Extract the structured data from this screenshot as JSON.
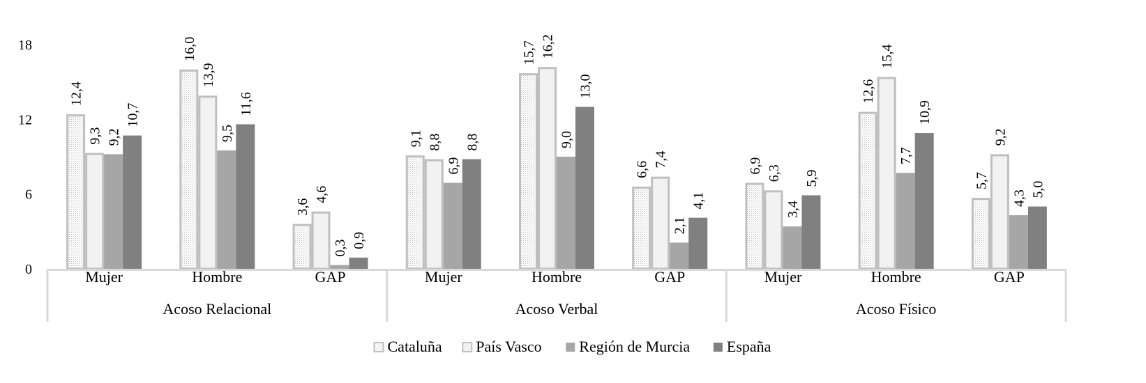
{
  "chart_data": {
    "type": "bar",
    "title": "",
    "xlabel": "",
    "ylabel": "",
    "ylim": [
      0,
      18
    ],
    "yticks": [
      0,
      6,
      12,
      18
    ],
    "groups": [
      {
        "name": "Acoso Relacional",
        "categories": [
          "Mujer",
          "Hombre",
          "GAP"
        ]
      },
      {
        "name": "Acoso Verbal",
        "categories": [
          "Mujer",
          "Hombre",
          "GAP"
        ]
      },
      {
        "name": "Acoso Físico",
        "categories": [
          "Mujer",
          "Hombre",
          "GAP"
        ]
      }
    ],
    "series": [
      {
        "name": "Cataluña",
        "fill": "pattern-dots",
        "stroke": "#bfbfbf",
        "values": [
          12.4,
          16.0,
          3.6,
          9.1,
          15.7,
          6.6,
          6.9,
          12.6,
          5.7
        ],
        "labels": [
          "12,4",
          "16,0",
          "3,6",
          "9,1",
          "15,7",
          "6,6",
          "6,9",
          "12,6",
          "5,7"
        ]
      },
      {
        "name": "País Vasco",
        "fill": "#f2f2f2",
        "stroke": "#bfbfbf",
        "values": [
          9.3,
          13.9,
          4.6,
          8.8,
          16.2,
          7.4,
          6.3,
          15.4,
          9.2
        ],
        "labels": [
          "9,3",
          "13,9",
          "4,6",
          "8,8",
          "16,2",
          "7,4",
          "6,3",
          "15,4",
          "9,2"
        ]
      },
      {
        "name": "Región de Murcia",
        "fill": "#a6a6a6",
        "stroke": "none",
        "values": [
          9.2,
          9.5,
          0.3,
          6.9,
          9.0,
          2.1,
          3.4,
          7.7,
          4.3
        ],
        "labels": [
          "9,2",
          "9,5",
          "0,3",
          "6,9",
          "9,0",
          "2,1",
          "3,4",
          "7,7",
          "4,3"
        ]
      },
      {
        "name": "España",
        "fill": "#808080",
        "stroke": "none",
        "values": [
          10.7,
          11.6,
          0.9,
          8.8,
          13.0,
          4.1,
          5.9,
          10.9,
          5.0
        ],
        "labels": [
          "10,7",
          "11,6",
          "0,9",
          "8,8",
          "13,0",
          "4,1",
          "5,9",
          "10,9",
          "5,0"
        ]
      }
    ],
    "legend": {
      "position": "bottom"
    },
    "grid": false
  }
}
